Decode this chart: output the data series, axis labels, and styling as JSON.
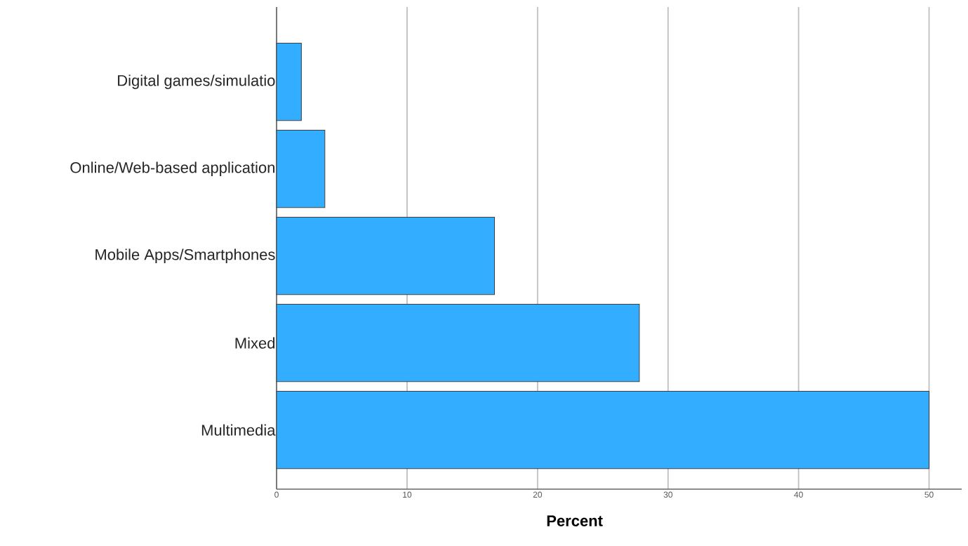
{
  "chart_data": {
    "type": "bar",
    "orientation": "horizontal",
    "xlabel": "Percent",
    "categories": [
      "Digital games/simulatio",
      "Online/Web-based application",
      "Mobile Apps/Smartphones",
      "Mixed",
      "Multimedia"
    ],
    "values": [
      1.9,
      3.7,
      16.7,
      27.8,
      50.0
    ],
    "color": "#33adff",
    "xlim": [
      0,
      52.5
    ],
    "xticks": [
      0,
      10,
      20,
      30,
      40,
      50
    ],
    "grid": "x"
  }
}
